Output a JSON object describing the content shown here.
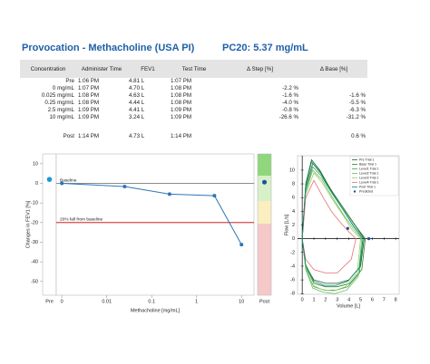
{
  "header": {
    "title": "Provocation - Methacholine (USA PI)",
    "pc20": "PC20: 5.37 mg/mL"
  },
  "table": {
    "columns": [
      "Concentration",
      "Administer Time",
      "FEV1",
      "Test Time",
      "Δ Step [%]",
      "Δ Base [%]"
    ],
    "rows": [
      [
        "Pre",
        "1:06 PM",
        "4.81 L",
        "1:07 PM",
        null,
        null
      ],
      [
        "0 mg/mL",
        "1:07 PM",
        "4.70 L",
        "1:08 PM",
        "-2.2 %",
        null
      ],
      [
        "0.025 mg/mL",
        "1:08 PM",
        "4.63 L",
        "1:08 PM",
        "-1.6 %",
        "-1.6 %"
      ],
      [
        "0.25 mg/mL",
        "1:08 PM",
        "4.44 L",
        "1:08 PM",
        "-4.0 %",
        "-5.5 %"
      ],
      [
        "2.5 mg/mL",
        "1:09 PM",
        "4.41 L",
        "1:09 PM",
        "-0.8 %",
        "-6.3 %"
      ],
      [
        "10 mg/mL",
        "1:09 PM",
        "3.24 L",
        "1:09 PM",
        "-26.6 %",
        "-31.2 %"
      ],
      [
        "Post",
        "1:14 PM",
        "4.73 L",
        "1:14 PM",
        null,
        "0.6 %"
      ]
    ]
  },
  "chart_data": [
    {
      "type": "line",
      "y_label": "Changes in FEV1 [%]",
      "x_label": "Methacholine [mg/mL]",
      "log_x": true,
      "x": [
        0.001,
        0.025,
        0.25,
        2.5,
        10
      ],
      "values": [
        0,
        -1.6,
        -5.5,
        -6.3,
        -31.2
      ],
      "color": "#2e75b6",
      "xlim": [
        0.00075,
        19
      ],
      "xticks": [
        {
          "value": 0.001,
          "label": "0"
        },
        0.01,
        0.1,
        1,
        10
      ],
      "ylim": [
        -57,
        15
      ],
      "yticks": [
        10,
        0,
        -10,
        -20,
        -30,
        -40,
        -50
      ],
      "reference_lines": [
        {
          "value": 0,
          "label": "Baseline",
          "color": "#8c8c8c"
        },
        {
          "value": -20,
          "label": "20% fall from baseline",
          "color": "#c00000"
        }
      ],
      "pre": {
        "label": "Pre",
        "value": 2,
        "color": "#1a9ad6"
      },
      "post": {
        "label": "Post",
        "value": 0.6,
        "color": "#1f4e9a"
      }
    },
    {
      "type": "line",
      "x_label": "Volume [L]",
      "y_label": "Flow [L/s]",
      "xlim": [
        -0.4,
        8.3
      ],
      "xticks": [
        0,
        1,
        2,
        3,
        4,
        5,
        6,
        7,
        8
      ],
      "ylim": [
        -8.1,
        12.1
      ],
      "yticks": [
        10,
        8,
        6,
        4,
        2,
        0,
        -2,
        -4,
        -6,
        -8
      ],
      "legend": "upper right",
      "series": [
        {
          "name": "Pre Trial 1",
          "color": "#1b5e20",
          "x": [
            0,
            0.3,
            0.8,
            1.5,
            2.5,
            3.5,
            4.5,
            5.3,
            5.0,
            4.0,
            3.0,
            2.0,
            1.0,
            0.3,
            0
          ],
          "values": [
            0,
            8,
            11.5,
            10,
            7,
            4.5,
            2,
            0,
            -4,
            -6,
            -6.5,
            -6.5,
            -6,
            -4,
            0
          ]
        },
        {
          "name": "Base Trial 1",
          "color": "#2e7d32",
          "x": [
            0,
            0.3,
            0.9,
            1.6,
            2.6,
            3.6,
            4.6,
            5.4,
            5.1,
            4.1,
            3.0,
            2.0,
            1.0,
            0.3,
            0
          ],
          "values": [
            0,
            7.5,
            11,
            9.5,
            6.8,
            4.3,
            1.8,
            0,
            -4.5,
            -6.5,
            -7,
            -7,
            -6.5,
            -4,
            0
          ]
        },
        {
          "name": "Level1 Trial 1",
          "color": "#43a047",
          "x": [
            0,
            0.3,
            0.9,
            1.6,
            2.6,
            3.6,
            4.5,
            5.2,
            4.9,
            3.9,
            2.9,
            1.9,
            1.0,
            0.3,
            0
          ],
          "values": [
            0,
            7,
            10.5,
            9.2,
            6.5,
            4,
            1.6,
            0,
            -5,
            -7,
            -7.5,
            -7.5,
            -7,
            -4.5,
            0
          ]
        },
        {
          "name": "Level2 Trial 1",
          "color": "#66bb6a",
          "x": [
            0,
            0.3,
            0.9,
            1.7,
            2.6,
            3.5,
            4.4,
            5.1,
            4.8,
            3.8,
            2.8,
            1.8,
            0.9,
            0.3,
            0
          ],
          "values": [
            0,
            6.8,
            10,
            8.6,
            6,
            3.6,
            1.4,
            0,
            -5.5,
            -7.5,
            -8,
            -7.8,
            -7.2,
            -4.5,
            0
          ]
        },
        {
          "name": "Level3 Trial 1",
          "color": "#9ccc65",
          "x": [
            0,
            0.3,
            1.0,
            1.7,
            2.6,
            3.5,
            4.3,
            5.0,
            4.7,
            3.7,
            2.7,
            1.7,
            0.9,
            0.3,
            0
          ],
          "values": [
            0,
            6.5,
            9.6,
            8.2,
            5.7,
            3.4,
            1.2,
            0,
            -5,
            -7,
            -7.6,
            -7.4,
            -6.8,
            -4.2,
            0
          ]
        },
        {
          "name": "Level4 Trial 1",
          "color": "#e57373",
          "x": [
            0,
            0.3,
            1.0,
            1.8,
            2.5,
            3.2,
            4.0,
            4.6,
            4.2,
            3.0,
            2.0,
            1.0,
            0.3,
            0
          ],
          "values": [
            0,
            6,
            8.5,
            6,
            4,
            2.5,
            1,
            0,
            -3,
            -5,
            -5,
            -4.5,
            -3,
            0
          ]
        },
        {
          "name": "Post Trial 1",
          "color": "#00897b",
          "x": [
            0,
            0.3,
            0.8,
            1.5,
            2.5,
            3.5,
            4.4,
            5.2,
            4.9,
            3.9,
            2.9,
            1.9,
            1.0,
            0.3,
            0
          ],
          "values": [
            0,
            7.8,
            11.2,
            9.8,
            6.8,
            4.2,
            1.8,
            0,
            -4.2,
            -6.2,
            -6.8,
            -6.8,
            -6.2,
            -3.8,
            0
          ]
        },
        {
          "name": "Predicted",
          "color": "#1f4e9a",
          "marker": true,
          "x": [
            3.9,
            5.7
          ],
          "values": [
            1.5,
            0
          ]
        }
      ]
    }
  ]
}
